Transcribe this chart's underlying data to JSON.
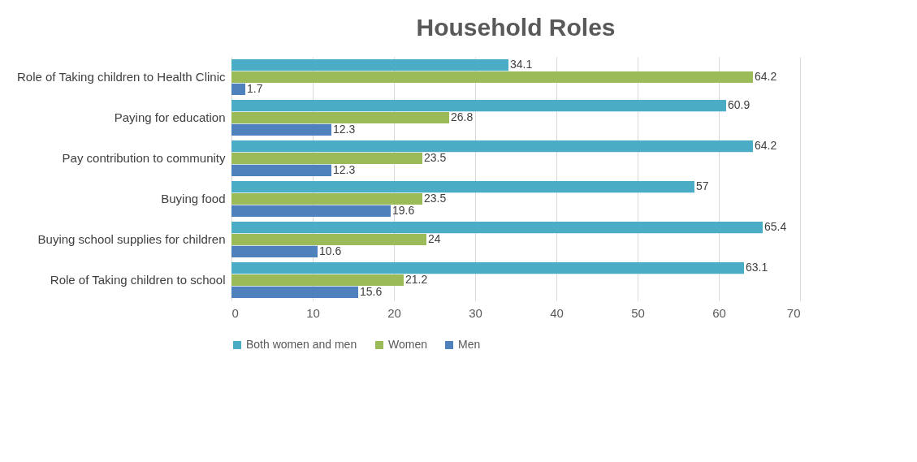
{
  "chart_data": {
    "type": "bar",
    "title": "Household Roles",
    "orientation": "horizontal",
    "categories": [
      "Role of Taking children to Health Clinic",
      "Paying for education",
      "Pay contribution to community",
      "Buying food",
      "Buying school supplies for children",
      "Role of Taking children to school"
    ],
    "series": [
      {
        "name": "Both women and men",
        "color": "#4bacc6",
        "values": [
          34.1,
          60.9,
          64.2,
          57,
          65.4,
          63.1
        ]
      },
      {
        "name": "Women",
        "color": "#9bbb59",
        "values": [
          64.2,
          26.8,
          23.5,
          23.5,
          24,
          21.2
        ]
      },
      {
        "name": "Men",
        "color": "#4f81bd",
        "values": [
          1.7,
          12.3,
          12.3,
          19.6,
          10.6,
          15.6
        ]
      }
    ],
    "xlim": [
      0,
      70
    ],
    "xticks": [
      0,
      10,
      20,
      30,
      40,
      50,
      60,
      70
    ],
    "grid": "x",
    "legend": "bottom",
    "data_labels": true
  }
}
